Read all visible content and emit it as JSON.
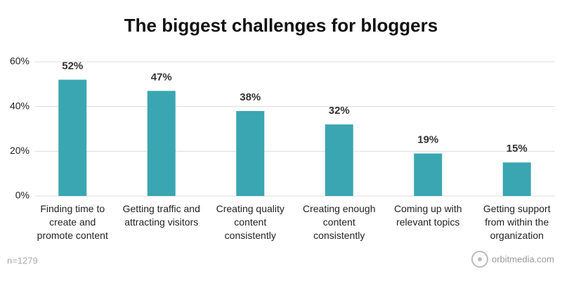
{
  "chart_data": {
    "type": "bar",
    "title": "The biggest challenges for bloggers",
    "categories": [
      "Finding time to create and promote content",
      "Getting traffic and attracting visitors",
      "Creating quality content consistently",
      "Creating enough content consistently",
      "Coming up with relevant topics",
      "Getting support from within the organization"
    ],
    "values": [
      52,
      47,
      38,
      32,
      19,
      15
    ],
    "value_labels": [
      "52%",
      "47%",
      "38%",
      "32%",
      "19%",
      "15%"
    ],
    "color": "#3aa6b1",
    "ylim": [
      0,
      60
    ],
    "yticks": [
      {
        "value": 0,
        "label": "0%"
      },
      {
        "value": 20,
        "label": "20%"
      },
      {
        "value": 40,
        "label": "40%"
      },
      {
        "value": 60,
        "label": "60%"
      }
    ],
    "grid": true,
    "note": "n=1279",
    "source": "orbitmedia.com"
  }
}
